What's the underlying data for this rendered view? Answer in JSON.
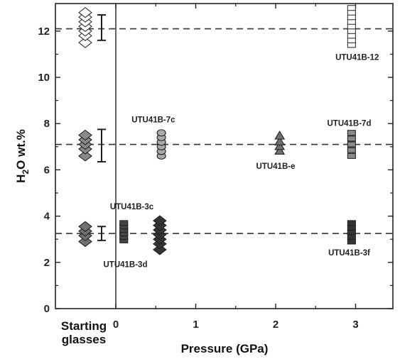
{
  "chart_data": {
    "type": "scatter",
    "title": "",
    "xlabel": "Pressure (GPa)",
    "ylabel_main": "H",
    "ylabel_sub": "2",
    "ylabel_rest": "O wt.%",
    "xlim": [
      -0.5,
      3.5
    ],
    "ylim": [
      0,
      13
    ],
    "yticks": [
      0,
      2,
      4,
      6,
      8,
      10,
      12
    ],
    "xticks": [
      0,
      1,
      2,
      3
    ],
    "starting_label_line1": "Starting",
    "starting_label_line2": "glasses",
    "reference_lines": [
      12.1,
      7.1,
      3.25
    ],
    "starting_glasses": [
      {
        "fill": "#ffffff",
        "values": [
          11.5,
          11.8,
          12.0,
          12.2,
          12.4,
          12.6,
          12.8
        ]
      },
      {
        "fill": "#8a8a8a",
        "values": [
          6.6,
          6.9,
          7.1,
          7.3,
          7.5
        ]
      },
      {
        "fill": "#707070",
        "values": [
          2.9,
          3.15,
          3.35,
          3.55
        ]
      }
    ],
    "error_bars": [
      {
        "center": 12.15,
        "low": 11.6,
        "high": 12.7
      },
      {
        "center": 7.05,
        "low": 6.35,
        "high": 7.75
      },
      {
        "center": 3.25,
        "low": 2.95,
        "high": 3.55
      }
    ],
    "series": [
      {
        "name": "UTU41B-12",
        "marker": "square",
        "fill": "#ffffff",
        "x": 2.95,
        "y": [
          11.4,
          11.6,
          11.8,
          12.0,
          12.2,
          12.4,
          12.6,
          12.8,
          13.0
        ]
      },
      {
        "name": "UTU41B-7c",
        "marker": "circle",
        "fill": "#a8a8a8",
        "x": 0.57,
        "y": [
          6.6,
          6.8,
          7.0,
          7.2,
          7.4,
          7.6
        ]
      },
      {
        "name": "UTU41B-e",
        "marker": "triangle",
        "fill": "#707070",
        "x": 2.05,
        "y": [
          6.8,
          7.0,
          7.2,
          7.45
        ]
      },
      {
        "name": "UTU41B-7d",
        "marker": "square",
        "fill": "#8a8a8a",
        "x": 2.95,
        "y": [
          6.6,
          6.85,
          7.1,
          7.35,
          7.6
        ]
      },
      {
        "name": "UTU41B-3d",
        "marker": "square",
        "fill": "#444444",
        "x": 0.1,
        "y": [
          2.95,
          3.1,
          3.25,
          3.4,
          3.55,
          3.7
        ]
      },
      {
        "name": "UTU41B-3c",
        "marker": "diamond",
        "fill": "#333333",
        "x": 0.55,
        "y": [
          2.55,
          2.8,
          3.0,
          3.2,
          3.4,
          3.6,
          3.8
        ]
      },
      {
        "name": "UTU41B-3f",
        "marker": "square",
        "fill": "#333333",
        "x": 2.95,
        "y": [
          2.9,
          3.1,
          3.3,
          3.5,
          3.7
        ]
      }
    ],
    "annotations": [
      {
        "text": "UTU41B-12",
        "x": 3.02,
        "y": 10.75
      },
      {
        "text": "UTU41B-7c",
        "x": 0.47,
        "y": 8.05
      },
      {
        "text": "UTU41B-e",
        "x": 2.0,
        "y": 6.05
      },
      {
        "text": "UTU41B-7d",
        "x": 2.92,
        "y": 7.9
      },
      {
        "text": "UTU41B-3c",
        "x": 0.2,
        "y": 4.3
      },
      {
        "text": "UTU41B-3d",
        "x": 0.12,
        "y": 1.8
      },
      {
        "text": "UTU41B-3f",
        "x": 2.92,
        "y": 2.3
      }
    ]
  }
}
